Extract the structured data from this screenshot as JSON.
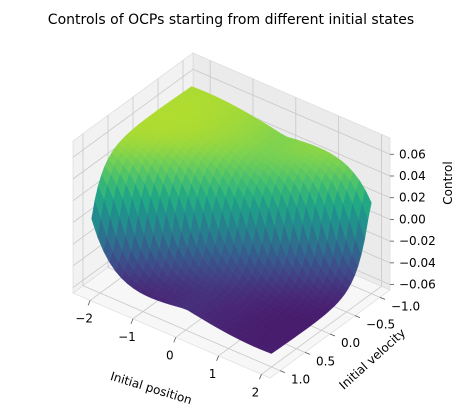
{
  "chart_data": {
    "type": "surface",
    "title": "Controls of OCPs starting from different initial states",
    "xlabel": "Initial position",
    "ylabel": "Initial velocity",
    "zlabel": "Control",
    "xlim": [
      -2.4,
      2.2
    ],
    "ylim": [
      -1.2,
      1.2
    ],
    "zlim": [
      -0.065,
      0.075
    ],
    "xticks": [
      -2,
      -1,
      0,
      1,
      2
    ],
    "xtick_labels": [
      "−2",
      "−1",
      "0",
      "1",
      "2"
    ],
    "yticks": [
      -1.0,
      -0.5,
      0.0,
      0.5,
      1.0
    ],
    "ytick_labels": [
      "−1.0",
      "−0.5",
      "0.0",
      "0.5",
      "1.0"
    ],
    "zticks": [
      -0.06,
      -0.04,
      -0.02,
      0.0,
      0.02,
      0.04,
      0.06
    ],
    "ztick_labels": [
      "−0.06",
      "−0.04",
      "−0.02",
      "0.00",
      "0.02",
      "0.04",
      "0.06"
    ],
    "colormap": "viridis",
    "grid": true,
    "x_range": [
      -2.2,
      2.0
    ],
    "y_range": [
      -1.0,
      1.0
    ],
    "samples": [
      {
        "x": -2.0,
        "y": -1.0,
        "z": 0.07
      },
      {
        "x": -2.0,
        "y": 1.0,
        "z": -0.06
      },
      {
        "x": 2.0,
        "y": -1.0,
        "z": 0.065
      },
      {
        "x": 2.0,
        "y": 1.0,
        "z": -0.062
      },
      {
        "x": 0.0,
        "y": 0.0,
        "z": 0.0
      }
    ]
  }
}
